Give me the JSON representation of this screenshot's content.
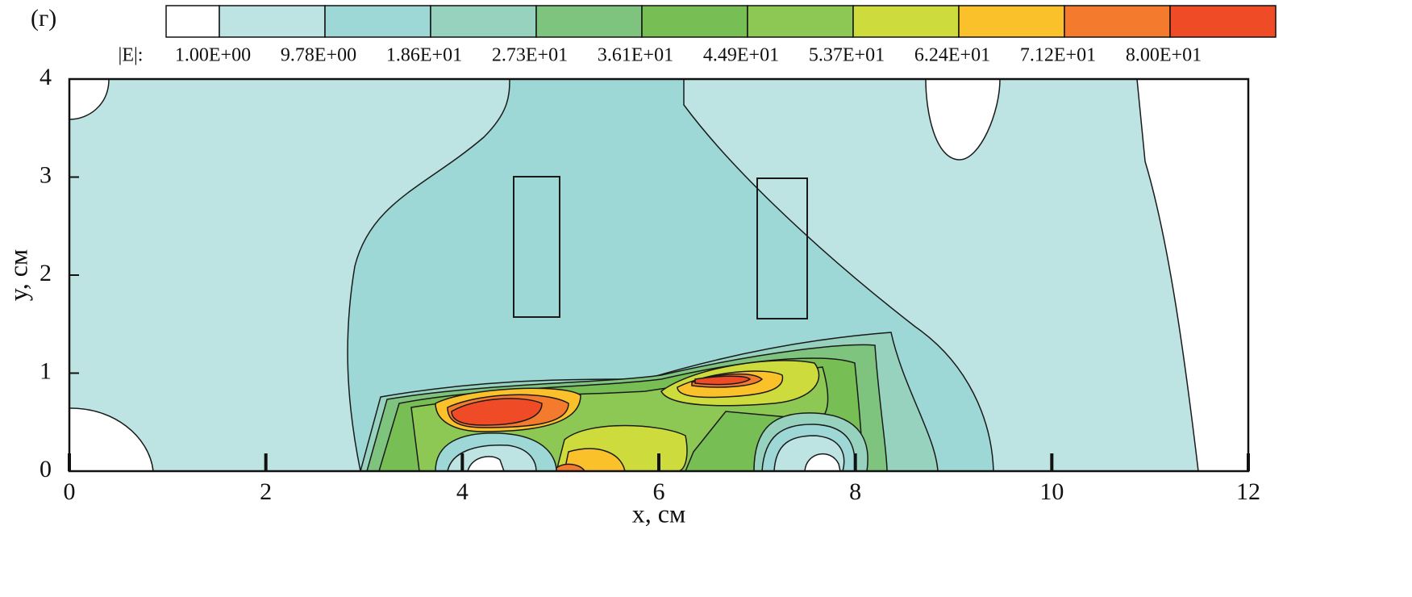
{
  "chart_data": {
    "type": "contour",
    "panel_label": "(г)",
    "colorbar_label": "|E|:",
    "levels": [
      {
        "value": 1.0,
        "label": "1.00E+00"
      },
      {
        "value": 9.78,
        "label": "9.78E+00"
      },
      {
        "value": 18.6,
        "label": "1.86E+01"
      },
      {
        "value": 27.3,
        "label": "2.73E+01"
      },
      {
        "value": 36.1,
        "label": "3.61E+01"
      },
      {
        "value": 44.9,
        "label": "4.49E+01"
      },
      {
        "value": 53.7,
        "label": "5.37E+01"
      },
      {
        "value": 62.4,
        "label": "6.24E+01"
      },
      {
        "value": 71.2,
        "label": "7.12E+01"
      },
      {
        "value": 80.0,
        "label": "8.00E+01"
      }
    ],
    "colors": [
      "#ffffff",
      "#bde3e3",
      "#9dd8d6",
      "#96d2be",
      "#7ec47e",
      "#77bf55",
      "#8dc854",
      "#cddc3c",
      "#fbc12a",
      "#f47a2e",
      "#ee4b26"
    ],
    "x_label": "x, см",
    "y_label": "y, см",
    "xlim": [
      0,
      12
    ],
    "ylim": [
      0,
      4
    ],
    "xticks": [
      0,
      2,
      4,
      6,
      8,
      10,
      12
    ],
    "yticks": [
      0,
      1,
      2,
      3,
      4
    ]
  }
}
